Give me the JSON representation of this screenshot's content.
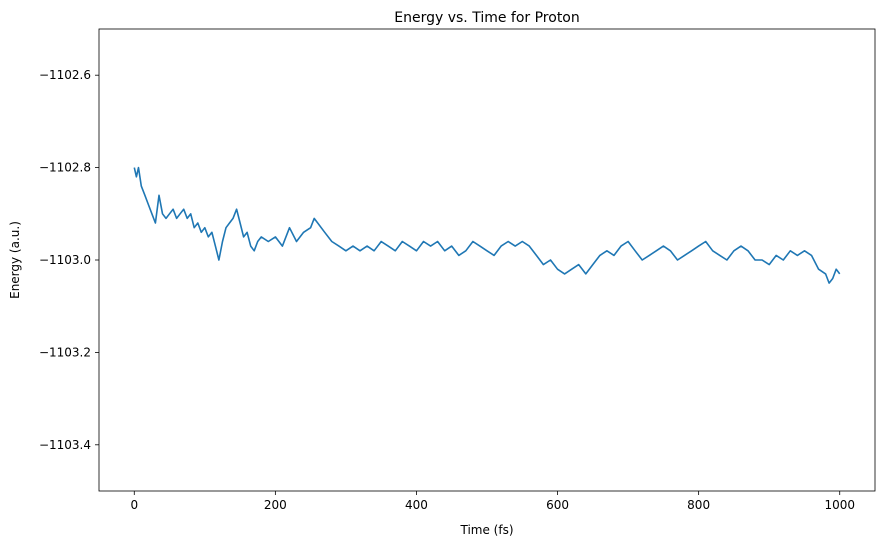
{
  "chart_data": {
    "type": "line",
    "title": "Energy vs. Time for Proton",
    "xlabel": "Time (fs)",
    "ylabel": "Energy (a.u.)",
    "xlim": [
      -50,
      1050
    ],
    "ylim": [
      -1103.5,
      -1102.5
    ],
    "xticks": [
      0,
      200,
      400,
      600,
      800,
      1000
    ],
    "xtick_labels": [
      "0",
      "200",
      "400",
      "600",
      "800",
      "1000"
    ],
    "yticks": [
      -1102.6,
      -1102.8,
      -1103.0,
      -1103.2,
      -1103.4
    ],
    "ytick_labels": [
      "−1102.6",
      "−1102.8",
      "−1103.0",
      "−1103.2",
      "−1103.4"
    ],
    "grid": false,
    "series": [
      {
        "color": "#1f77b4",
        "x": [
          0,
          3,
          6,
          10,
          15,
          20,
          25,
          30,
          35,
          40,
          45,
          50,
          55,
          60,
          65,
          70,
          75,
          80,
          85,
          90,
          95,
          100,
          105,
          110,
          115,
          120,
          125,
          130,
          135,
          140,
          145,
          150,
          155,
          160,
          165,
          170,
          175,
          180,
          190,
          200,
          210,
          220,
          230,
          240,
          250,
          255,
          260,
          270,
          280,
          290,
          300,
          310,
          320,
          330,
          340,
          350,
          360,
          370,
          380,
          390,
          400,
          410,
          420,
          430,
          440,
          450,
          460,
          470,
          480,
          490,
          500,
          510,
          520,
          530,
          540,
          550,
          560,
          570,
          580,
          590,
          600,
          610,
          620,
          630,
          640,
          650,
          660,
          670,
          680,
          690,
          700,
          710,
          720,
          730,
          740,
          750,
          760,
          770,
          780,
          790,
          800,
          810,
          820,
          830,
          840,
          850,
          860,
          870,
          880,
          890,
          900,
          910,
          920,
          930,
          940,
          950,
          960,
          970,
          980,
          985,
          990,
          995,
          1000
        ],
        "y": [
          -1102.8,
          -1102.82,
          -1102.8,
          -1102.84,
          -1102.86,
          -1102.88,
          -1102.9,
          -1102.92,
          -1102.86,
          -1102.9,
          -1102.91,
          -1102.9,
          -1102.89,
          -1102.91,
          -1102.9,
          -1102.89,
          -1102.91,
          -1102.9,
          -1102.93,
          -1102.92,
          -1102.94,
          -1102.93,
          -1102.95,
          -1102.94,
          -1102.97,
          -1103.0,
          -1102.96,
          -1102.93,
          -1102.92,
          -1102.91,
          -1102.89,
          -1102.92,
          -1102.95,
          -1102.94,
          -1102.97,
          -1102.98,
          -1102.96,
          -1102.95,
          -1102.96,
          -1102.95,
          -1102.97,
          -1102.93,
          -1102.96,
          -1102.94,
          -1102.93,
          -1102.91,
          -1102.92,
          -1102.94,
          -1102.96,
          -1102.97,
          -1102.98,
          -1102.97,
          -1102.98,
          -1102.97,
          -1102.98,
          -1102.96,
          -1102.97,
          -1102.98,
          -1102.96,
          -1102.97,
          -1102.98,
          -1102.96,
          -1102.97,
          -1102.96,
          -1102.98,
          -1102.97,
          -1102.99,
          -1102.98,
          -1102.96,
          -1102.97,
          -1102.98,
          -1102.99,
          -1102.97,
          -1102.96,
          -1102.97,
          -1102.96,
          -1102.97,
          -1102.99,
          -1103.01,
          -1103.0,
          -1103.02,
          -1103.03,
          -1103.02,
          -1103.01,
          -1103.03,
          -1103.01,
          -1102.99,
          -1102.98,
          -1102.99,
          -1102.97,
          -1102.96,
          -1102.98,
          -1103.0,
          -1102.99,
          -1102.98,
          -1102.97,
          -1102.98,
          -1103.0,
          -1102.99,
          -1102.98,
          -1102.97,
          -1102.96,
          -1102.98,
          -1102.99,
          -1103.0,
          -1102.98,
          -1102.97,
          -1102.98,
          -1103.0,
          -1103.0,
          -1103.01,
          -1102.99,
          -1103.0,
          -1102.98,
          -1102.99,
          -1102.98,
          -1102.99,
          -1103.02,
          -1103.03,
          -1103.05,
          -1103.04,
          -1103.02,
          -1103.03
        ]
      }
    ]
  }
}
